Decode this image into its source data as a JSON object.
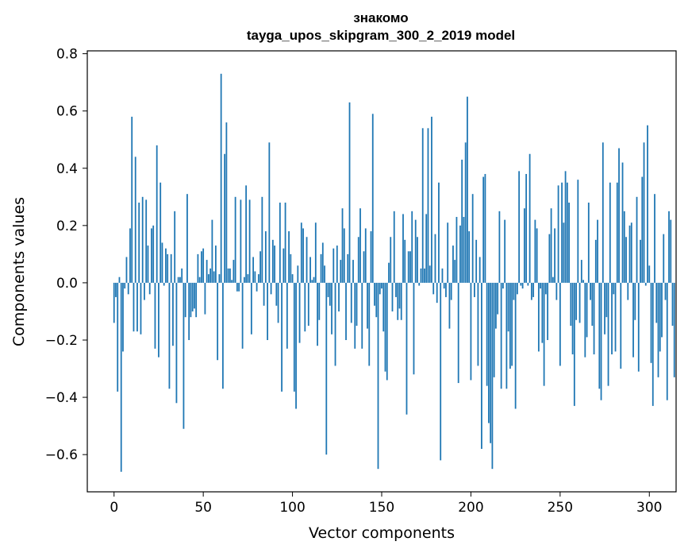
{
  "chart_data": {
    "type": "bar",
    "title_line1": "знакомо",
    "title_line2": "tayga_upos_skipgram_300_2_2019 model",
    "xlabel": "Vector components",
    "ylabel": "Components values",
    "xlim": [
      -15,
      315
    ],
    "ylim": [
      -0.73,
      0.81
    ],
    "xticks": [
      0,
      50,
      100,
      150,
      200,
      250,
      300
    ],
    "xtick_labels": [
      "0",
      "50",
      "100",
      "150",
      "200",
      "250",
      "300"
    ],
    "yticks": [
      -0.6,
      -0.4,
      -0.2,
      0.0,
      0.2,
      0.4,
      0.6,
      0.8
    ],
    "ytick_labels": [
      "−0.6",
      "−0.4",
      "−0.2",
      "0.0",
      "0.2",
      "0.4",
      "0.6",
      "0.8"
    ],
    "bar_color": "#1f77b4",
    "values": [
      -0.14,
      -0.05,
      -0.38,
      0.02,
      -0.66,
      -0.24,
      -0.02,
      0.09,
      -0.04,
      0.19,
      0.58,
      -0.17,
      0.44,
      -0.17,
      0.28,
      -0.18,
      0.3,
      -0.06,
      0.29,
      0.13,
      -0.04,
      0.19,
      0.2,
      -0.23,
      0.48,
      -0.26,
      0.35,
      0.14,
      -0.01,
      0.12,
      0.1,
      -0.37,
      0.1,
      -0.22,
      0.25,
      -0.42,
      0.02,
      0.02,
      0.05,
      -0.51,
      -0.12,
      0.31,
      -0.2,
      -0.12,
      -0.1,
      -0.09,
      -0.12,
      0.1,
      0.02,
      0.11,
      0.12,
      -0.11,
      0.08,
      0.03,
      0.05,
      0.22,
      0.04,
      0.13,
      -0.27,
      0.03,
      0.73,
      -0.37,
      0.45,
      0.56,
      0.05,
      0.05,
      0.01,
      0.08,
      0.3,
      -0.03,
      -0.03,
      0.29,
      -0.23,
      0.02,
      0.34,
      0.03,
      0.29,
      -0.18,
      0.09,
      0.04,
      -0.03,
      0.03,
      0.11,
      0.3,
      -0.08,
      0.18,
      -0.2,
      0.49,
      -0.04,
      0.15,
      0.13,
      -0.08,
      -0.14,
      0.28,
      -0.38,
      0.12,
      0.28,
      -0.23,
      0.18,
      0.1,
      0.03,
      -0.38,
      -0.44,
      0.06,
      -0.21,
      0.21,
      0.19,
      -0.17,
      0.16,
      -0.15,
      0.09,
      0.01,
      0.02,
      0.21,
      -0.22,
      -0.13,
      0.1,
      0.14,
      0.06,
      -0.6,
      -0.05,
      -0.08,
      -0.18,
      0.12,
      -0.29,
      0.13,
      -0.1,
      0.08,
      0.26,
      0.19,
      -0.2,
      0.1,
      0.63,
      -0.14,
      0.08,
      -0.23,
      -0.15,
      0.16,
      0.26,
      -0.23,
      0.11,
      0.19,
      -0.16,
      -0.29,
      0.18,
      0.59,
      -0.08,
      -0.12,
      -0.65,
      -0.04,
      -0.02,
      -0.17,
      -0.31,
      -0.34,
      0.07,
      0.16,
      -0.1,
      0.25,
      -0.05,
      -0.13,
      -0.09,
      -0.13,
      0.24,
      0.15,
      -0.46,
      0.11,
      0.11,
      0.25,
      -0.32,
      0.22,
      0.16,
      -0.01,
      0.05,
      0.54,
      0.05,
      0.24,
      0.54,
      0.06,
      0.58,
      -0.04,
      0.17,
      -0.07,
      0.35,
      -0.62,
      0.05,
      -0.02,
      -0.05,
      0.21,
      -0.16,
      -0.06,
      0.13,
      0.08,
      0.23,
      -0.35,
      0.2,
      0.43,
      0.23,
      0.49,
      0.65,
      0.18,
      -0.34,
      0.31,
      -0.05,
      0.15,
      -0.29,
      0.09,
      -0.58,
      0.37,
      0.38,
      -0.36,
      -0.49,
      -0.56,
      -0.65,
      -0.33,
      -0.16,
      -0.11,
      0.25,
      -0.37,
      -0.02,
      0.22,
      -0.37,
      -0.17,
      -0.3,
      -0.29,
      -0.06,
      -0.44,
      -0.04,
      0.39,
      -0.01,
      -0.02,
      0.26,
      0.38,
      -0.01,
      0.45,
      -0.06,
      -0.05,
      0.22,
      0.19,
      -0.24,
      -0.02,
      -0.21,
      -0.36,
      -0.04,
      -0.2,
      0.17,
      0.26,
      0.02,
      0.19,
      -0.06,
      0.34,
      -0.29,
      0.35,
      0.21,
      0.39,
      0.35,
      0.28,
      -0.15,
      -0.25,
      -0.43,
      -0.13,
      0.36,
      -0.14,
      0.08,
      0.01,
      -0.26,
      -0.19,
      0.28,
      -0.06,
      -0.15,
      -0.25,
      0.15,
      0.22,
      -0.37,
      -0.41,
      0.49,
      -0.18,
      -0.12,
      -0.36,
      0.35,
      -0.25,
      -0.04,
      -0.24,
      0.35,
      0.47,
      -0.3,
      0.42,
      0.25,
      0.16,
      -0.06,
      0.2,
      0.21,
      -0.26,
      -0.13,
      0.3,
      -0.31,
      0.15,
      0.37,
      0.49,
      -0.01,
      0.55,
      0.06,
      -0.28,
      -0.43,
      0.31,
      -0.14,
      -0.33,
      -0.24,
      -0.19,
      0.17,
      -0.06,
      -0.41,
      0.25,
      0.22,
      -0.15,
      -0.33
    ]
  }
}
